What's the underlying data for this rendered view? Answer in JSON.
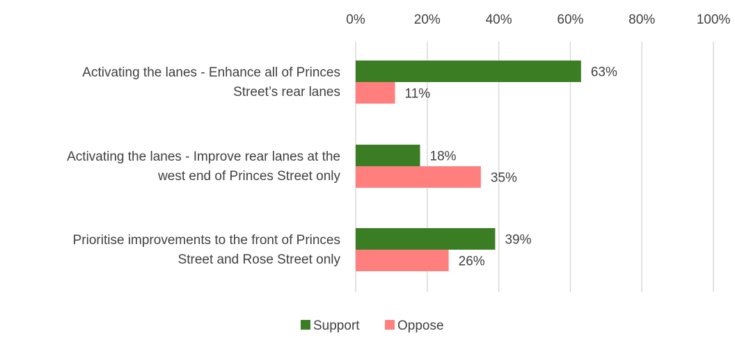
{
  "chart_data": {
    "type": "bar",
    "orientation": "horizontal",
    "title": "",
    "xlabel": "",
    "ylabel": "",
    "xlim": [
      0,
      100
    ],
    "x_ticks": [
      "0%",
      "20%",
      "40%",
      "60%",
      "80%",
      "100%"
    ],
    "grid": true,
    "legend_position": "bottom",
    "categories": [
      [
        "Activating the lanes - Enhance all of Princes",
        "Street’s rear lanes"
      ],
      [
        "Activating the lanes - Improve rear lanes at the",
        "west end of Princes Street only"
      ],
      [
        "Prioritise improvements to the front of Princes",
        "Street and Rose Street only"
      ]
    ],
    "series": [
      {
        "name": "Support",
        "color": "#3a7d22",
        "values": [
          63,
          18,
          39
        ],
        "labels": [
          "63%",
          "18%",
          "39%"
        ]
      },
      {
        "name": "Oppose",
        "color": "#ff7f7f",
        "values": [
          11,
          35,
          26
        ],
        "labels": [
          "11%",
          "35%",
          "26%"
        ]
      }
    ]
  }
}
